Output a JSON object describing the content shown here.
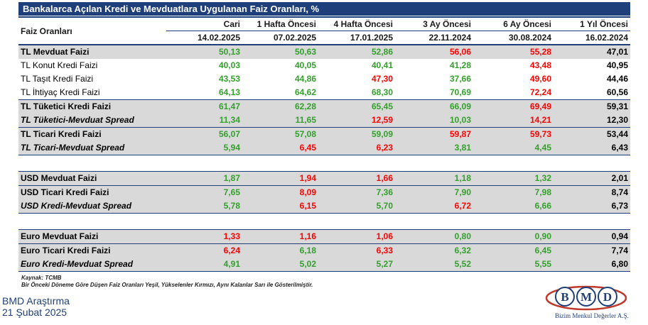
{
  "title": "Bankalarca Açılan Kredi ve Mevduatlara Uygulanan Faiz Oranları, %",
  "header": {
    "row_label": "Faiz Oranları",
    "columns": [
      "Cari",
      "1 Hafta Öncesi",
      "4 Hafta Öncesi",
      "3 Ay Öncesi",
      "6 Ay Öncesi",
      "1 Yıl Öncesi"
    ],
    "dates": [
      "14.02.2025",
      "07.02.2025",
      "17.01.2025",
      "22.11.2024",
      "30.08.2024",
      "16.02.2024"
    ]
  },
  "colors": {
    "green": "#33a02c",
    "red": "#ff0000",
    "black": "#000000",
    "header_blue": "#1f3f7a",
    "row_gray": "#d9d9d9"
  },
  "rows": [
    {
      "label": "TL Mevduat Faizi",
      "values": [
        "50,13",
        "50,63",
        "52,86",
        "56,06",
        "55,28",
        "47,01"
      ],
      "colors": [
        "g",
        "g",
        "g",
        "r",
        "r",
        "k"
      ],
      "style": "bold gray topline"
    },
    {
      "label": "TL Konut Kredi Faizi",
      "values": [
        "40,03",
        "40,05",
        "40,41",
        "41,28",
        "43,48",
        "40,95"
      ],
      "colors": [
        "g",
        "g",
        "g",
        "g",
        "r",
        "k"
      ],
      "style": ""
    },
    {
      "label": "TL Taşıt Kredi Faizi",
      "values": [
        "43,53",
        "44,86",
        "47,30",
        "37,66",
        "49,60",
        "44,46"
      ],
      "colors": [
        "g",
        "g",
        "r",
        "g",
        "r",
        "k"
      ],
      "style": ""
    },
    {
      "label": "TL İhtiyaç Kredi Faizi",
      "values": [
        "64,13",
        "64,62",
        "68,30",
        "70,69",
        "72,24",
        "60,56"
      ],
      "colors": [
        "g",
        "g",
        "g",
        "g",
        "r",
        "k"
      ],
      "style": ""
    },
    {
      "label": "TL Tüketici Kredi Faizi",
      "values": [
        "61,47",
        "62,28",
        "65,45",
        "66,09",
        "69,49",
        "59,31"
      ],
      "colors": [
        "g",
        "g",
        "g",
        "g",
        "r",
        "k"
      ],
      "style": "bold gray topline"
    },
    {
      "label": "TL Tüketici-Mevduat Spread",
      "values": [
        "11,34",
        "11,65",
        "12,59",
        "10,03",
        "14,21",
        "12,30"
      ],
      "colors": [
        "g",
        "g",
        "r",
        "g",
        "r",
        "k"
      ],
      "style": "italic gray"
    },
    {
      "label": "TL Ticari Kredi Faizi",
      "values": [
        "56,07",
        "57,08",
        "59,09",
        "59,87",
        "59,73",
        "53,44"
      ],
      "colors": [
        "g",
        "g",
        "g",
        "r",
        "r",
        "k"
      ],
      "style": "bold gray topline"
    },
    {
      "label": "TL Ticari-Mevduat Spread",
      "values": [
        "5,94",
        "6,45",
        "6,23",
        "3,81",
        "4,45",
        "6,43"
      ],
      "colors": [
        "g",
        "r",
        "r",
        "g",
        "g",
        "k"
      ],
      "style": "italic gray botline"
    },
    {
      "spacer": true
    },
    {
      "label": "USD Mevduat Faizi",
      "values": [
        "1,87",
        "1,94",
        "1,66",
        "1,18",
        "1,32",
        "2,01"
      ],
      "colors": [
        "g",
        "r",
        "r",
        "g",
        "g",
        "k"
      ],
      "style": "bold gray topline"
    },
    {
      "label": "USD Ticari Kredi Faizi",
      "values": [
        "7,65",
        "8,09",
        "7,36",
        "7,90",
        "7,98",
        "8,74"
      ],
      "colors": [
        "g",
        "r",
        "g",
        "g",
        "g",
        "k"
      ],
      "style": "bold gray topline"
    },
    {
      "label": "USD Kredi-Mevduat Spread",
      "values": [
        "5,78",
        "6,15",
        "5,70",
        "6,72",
        "6,66",
        "6,73"
      ],
      "colors": [
        "g",
        "r",
        "g",
        "r",
        "g",
        "k"
      ],
      "style": "italic gray botline"
    },
    {
      "spacer": true
    },
    {
      "label": "Euro Mevduat Faizi",
      "values": [
        "1,33",
        "1,16",
        "1,06",
        "0,80",
        "0,90",
        "0,94"
      ],
      "colors": [
        "r",
        "r",
        "r",
        "g",
        "g",
        "k"
      ],
      "style": "bold gray topline"
    },
    {
      "label": "Euro Ticari Kredi Faizi",
      "values": [
        "6,24",
        "6,18",
        "6,33",
        "6,32",
        "6,45",
        "7,74"
      ],
      "colors": [
        "r",
        "g",
        "r",
        "g",
        "g",
        "k"
      ],
      "style": "bold gray topline"
    },
    {
      "label": "Euro Kredi-Mevduat Spread",
      "values": [
        "4,91",
        "5,02",
        "5,27",
        "5,52",
        "5,55",
        "6,80"
      ],
      "colors": [
        "g",
        "g",
        "g",
        "g",
        "g",
        "k"
      ],
      "style": "italic gray botline"
    }
  ],
  "notes": {
    "source": "Kaynak: TCMB",
    "legend": "Bir Önceki Döneme Göre Düşen Faiz Oranları Yeşil, Yükselenler Kırmızı, Aynı Kalanlar Sarı ile Gösterilmiştir."
  },
  "footer": {
    "line1": "BMD Araştırma",
    "line2": "21 Şubat 2025"
  },
  "logo": {
    "letters": [
      "B",
      "M",
      "D"
    ],
    "tagline": "Bizim Menkul Değerler A.Ş."
  }
}
